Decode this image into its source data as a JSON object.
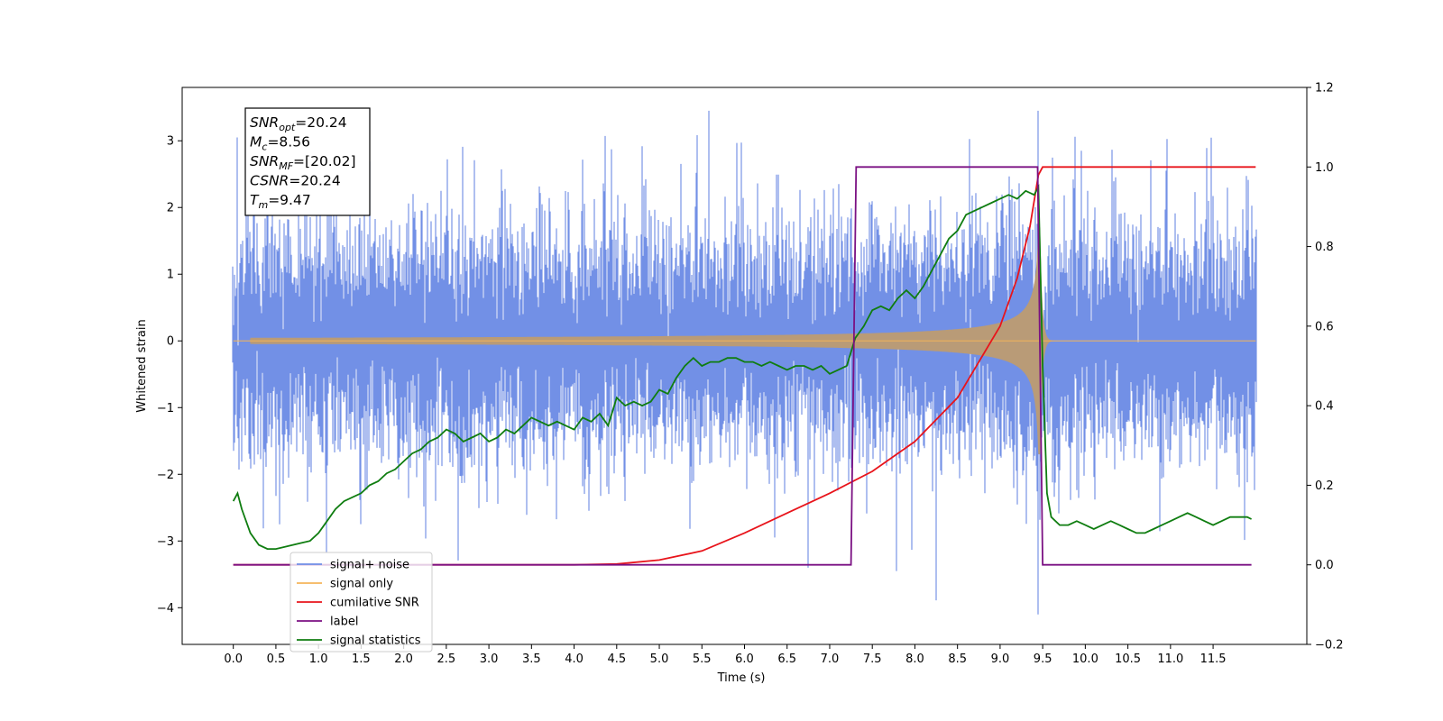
{
  "chart_data": {
    "type": "line",
    "title": "",
    "xlabel": "Time (s)",
    "ylabel": "Whitened strain",
    "xlim": [
      -0.6,
      12.6
    ],
    "ylim": [
      -4.55,
      3.8
    ],
    "y2lim": [
      -0.2,
      1.2
    ],
    "x_ticks": [
      "0.0",
      "0.5",
      "1.0",
      "1.5",
      "2.0",
      "2.5",
      "3.0",
      "3.5",
      "4.0",
      "4.5",
      "5.0",
      "5.5",
      "6.0",
      "6.5",
      "7.0",
      "7.5",
      "8.0",
      "8.5",
      "9.0",
      "9.5",
      "10.0",
      "10.5",
      "11.0",
      "11.5"
    ],
    "y_ticks": [
      "3",
      "2",
      "1",
      "0",
      "−1",
      "−2",
      "−3",
      "−4"
    ],
    "y2_ticks": [
      "1.2",
      "1.0",
      "0.8",
      "0.6",
      "0.4",
      "0.2",
      "0.0",
      "−0.2"
    ],
    "grid": false,
    "legend_position": "lower-left",
    "annotation": {
      "lines": [
        {
          "sym": "SNR",
          "sub": "opt",
          "value": "=20.24"
        },
        {
          "sym": "M",
          "sub": "c",
          "value": "=8.56"
        },
        {
          "sym": "SNR",
          "sub": "MF",
          "value": "=[20.02]"
        },
        {
          "sym": "CSNR",
          "sub": "",
          "value": "=20.24"
        },
        {
          "sym": "T",
          "sub": "m",
          "value": "=9.47"
        }
      ]
    },
    "series": [
      {
        "name": "signal+ noise",
        "color": "#6f8ee6",
        "axis": "left",
        "description_values": {
          "x_range": [
            0.0,
            12.0
          ],
          "noise_std": 0.8,
          "peak_max": 3.45,
          "peak_min": -4.1
        }
      },
      {
        "name": "signal only",
        "color": "#f5b55a",
        "axis": "left",
        "description_values": {
          "x_range": [
            0.0,
            12.0
          ],
          "merger_time": 9.47,
          "peak_amplitude": 1.7
        }
      },
      {
        "name": "cumilative SNR",
        "color": "#e8141b",
        "axis": "right",
        "x": [
          0.0,
          4.0,
          4.5,
          5.0,
          5.5,
          6.0,
          6.5,
          7.0,
          7.5,
          8.0,
          8.5,
          9.0,
          9.2,
          9.35,
          9.45,
          9.5,
          12.0
        ],
        "y": [
          0.0,
          0.0,
          0.002,
          0.012,
          0.035,
          0.08,
          0.13,
          0.18,
          0.235,
          0.31,
          0.42,
          0.6,
          0.72,
          0.85,
          0.98,
          1.0,
          1.0
        ]
      },
      {
        "name": "label",
        "color": "#7b1183",
        "axis": "right",
        "x": [
          0.0,
          7.25,
          7.31,
          9.44,
          9.5,
          11.95
        ],
        "y": [
          0.0,
          0.0,
          1.0,
          1.0,
          0.0,
          0.0
        ]
      },
      {
        "name": "signal statistics",
        "color": "#0f7d10",
        "axis": "right",
        "x": [
          0.0,
          0.05,
          0.1,
          0.2,
          0.3,
          0.4,
          0.5,
          0.6,
          0.7,
          0.8,
          0.9,
          1.0,
          1.1,
          1.2,
          1.3,
          1.4,
          1.5,
          1.6,
          1.7,
          1.8,
          1.9,
          2.0,
          2.1,
          2.2,
          2.3,
          2.4,
          2.5,
          2.6,
          2.7,
          2.8,
          2.9,
          3.0,
          3.1,
          3.2,
          3.3,
          3.4,
          3.5,
          3.6,
          3.7,
          3.8,
          3.9,
          4.0,
          4.1,
          4.2,
          4.3,
          4.4,
          4.5,
          4.6,
          4.7,
          4.8,
          4.9,
          5.0,
          5.1,
          5.2,
          5.3,
          5.4,
          5.5,
          5.6,
          5.7,
          5.8,
          5.9,
          6.0,
          6.1,
          6.2,
          6.3,
          6.4,
          6.5,
          6.6,
          6.7,
          6.8,
          6.9,
          7.0,
          7.1,
          7.2,
          7.3,
          7.4,
          7.5,
          7.6,
          7.7,
          7.8,
          7.9,
          8.0,
          8.1,
          8.2,
          8.3,
          8.4,
          8.5,
          8.6,
          8.7,
          8.8,
          8.9,
          9.0,
          9.1,
          9.2,
          9.3,
          9.4,
          9.45,
          9.5,
          9.55,
          9.6,
          9.7,
          9.8,
          9.9,
          10.0,
          10.1,
          10.2,
          10.3,
          10.4,
          10.5,
          10.6,
          10.7,
          10.8,
          10.9,
          11.0,
          11.1,
          11.2,
          11.3,
          11.4,
          11.5,
          11.6,
          11.7,
          11.8,
          11.9,
          11.95
        ],
        "y": [
          0.16,
          0.18,
          0.14,
          0.08,
          0.05,
          0.04,
          0.04,
          0.045,
          0.05,
          0.055,
          0.06,
          0.08,
          0.11,
          0.14,
          0.16,
          0.17,
          0.18,
          0.2,
          0.21,
          0.23,
          0.24,
          0.26,
          0.28,
          0.29,
          0.31,
          0.32,
          0.34,
          0.33,
          0.31,
          0.32,
          0.33,
          0.31,
          0.32,
          0.34,
          0.33,
          0.35,
          0.37,
          0.36,
          0.35,
          0.36,
          0.35,
          0.34,
          0.37,
          0.36,
          0.38,
          0.35,
          0.42,
          0.4,
          0.41,
          0.4,
          0.41,
          0.44,
          0.43,
          0.47,
          0.5,
          0.52,
          0.5,
          0.51,
          0.51,
          0.52,
          0.52,
          0.51,
          0.51,
          0.5,
          0.51,
          0.5,
          0.49,
          0.5,
          0.5,
          0.49,
          0.5,
          0.48,
          0.49,
          0.5,
          0.57,
          0.6,
          0.64,
          0.65,
          0.64,
          0.67,
          0.69,
          0.67,
          0.7,
          0.74,
          0.78,
          0.82,
          0.84,
          0.88,
          0.89,
          0.9,
          0.91,
          0.92,
          0.93,
          0.92,
          0.94,
          0.93,
          0.95,
          0.5,
          0.18,
          0.12,
          0.1,
          0.1,
          0.11,
          0.1,
          0.09,
          0.1,
          0.11,
          0.1,
          0.09,
          0.08,
          0.08,
          0.09,
          0.1,
          0.11,
          0.12,
          0.13,
          0.12,
          0.11,
          0.1,
          0.11,
          0.12,
          0.12,
          0.12,
          0.115
        ]
      }
    ]
  }
}
